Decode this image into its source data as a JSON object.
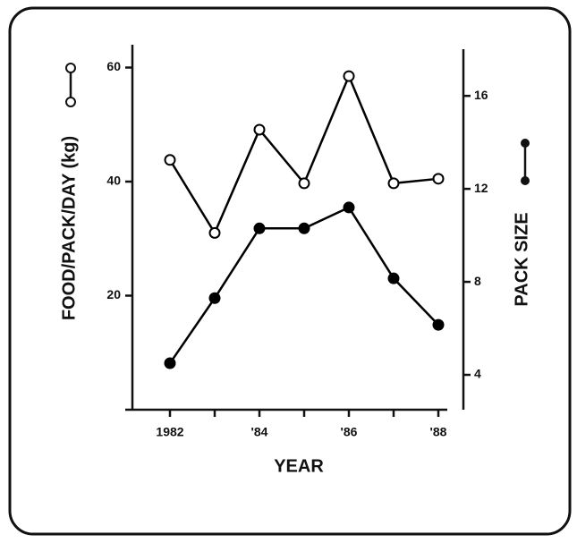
{
  "chart_data": {
    "type": "line",
    "xlabel": "YEAR",
    "ylabel": "FOOD/PACK/DAY (kg)",
    "y2label": "PACK SIZE",
    "x": [
      1982,
      1983,
      1984,
      1985,
      1986,
      1987,
      1988
    ],
    "series": [
      {
        "color": "#000000",
        "marker": "open",
        "values": [
          43.8,
          31,
          49.1,
          39.7,
          58.5,
          39.7,
          40.5
        ]
      },
      {
        "color": "#000000",
        "marker": "filled",
        "axis": "y2",
        "values": [
          4.5,
          7.3,
          10.3,
          10.3,
          11.2,
          8.15,
          6.15
        ]
      }
    ],
    "xlim": [
      1981,
      1988.2
    ],
    "xticks": [
      1982,
      {
        "value": 1984,
        "label": "'84"
      },
      {
        "value": 1986,
        "label": "'86"
      },
      {
        "value": 1988,
        "label": "'88"
      }
    ],
    "xminorticks": [
      1983,
      1985,
      1987
    ],
    "ylim": [
      0,
      64
    ],
    "yticks": [
      20,
      40,
      60
    ],
    "y2lim": [
      2.5,
      18.2
    ],
    "y2ticks": [
      4,
      8,
      12,
      16
    ],
    "grid": false
  }
}
